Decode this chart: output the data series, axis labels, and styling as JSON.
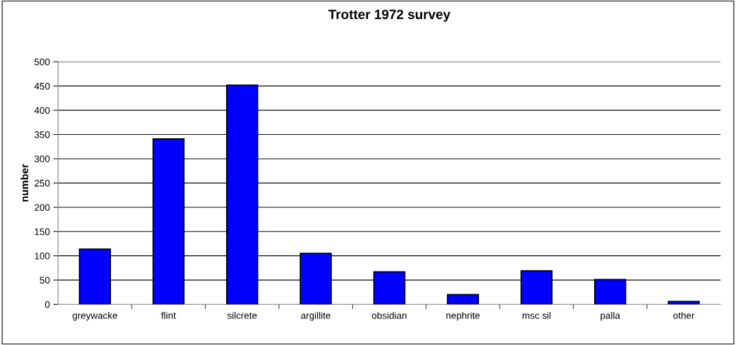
{
  "chart_data": {
    "type": "bar",
    "title": "Trotter 1972 survey",
    "ylabel": "number",
    "categories": [
      "greywacke",
      "flint",
      "silcrete",
      "argillite",
      "obsidian",
      "nephrite",
      "msc sil",
      "palla",
      "other"
    ],
    "values": [
      114,
      341,
      452,
      105,
      67,
      20,
      69,
      51,
      6
    ],
    "color": "#0000ff",
    "ylim": [
      0,
      500
    ],
    "yticks": [
      0,
      50,
      100,
      150,
      200,
      250,
      300,
      350,
      400,
      450,
      500
    ],
    "grid": "y",
    "legend": false
  }
}
